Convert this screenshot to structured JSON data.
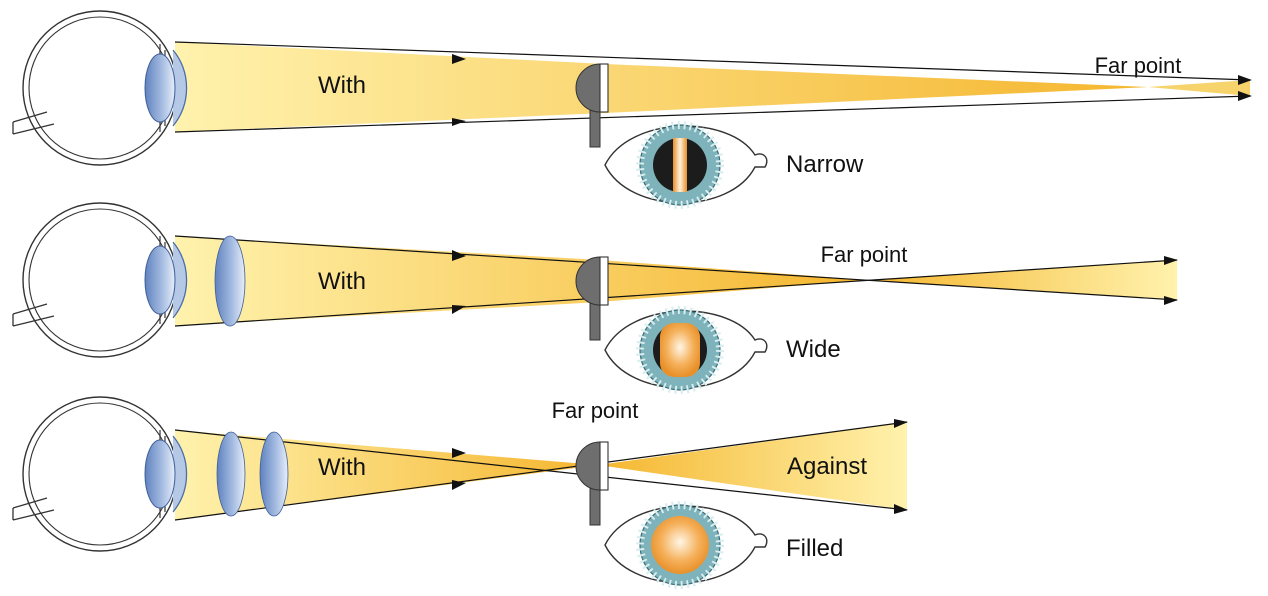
{
  "panels": [
    {
      "beam_label": "With",
      "far_point_label": "Far point",
      "reflex_label": "Narrow",
      "reflex_state": "narrow",
      "lens_count": 0
    },
    {
      "beam_label": "With",
      "far_point_label": "Far point",
      "reflex_label": "Wide",
      "reflex_state": "wide",
      "lens_count": 1
    },
    {
      "beam_label": "With",
      "far_point_label": "Far point",
      "reflex_label": "Filled",
      "reflex_state": "filled",
      "lens_count": 2,
      "reversed_label": "Against"
    }
  ],
  "colors": {
    "beam_light": "#fff2ad",
    "beam_dark": "#f5b62e",
    "lens": "#7f9fd0",
    "iris": "#7fb3bb",
    "pupil": "#1c1c1c",
    "reflex": "#f0a040",
    "peephole": "#6e6e6e",
    "arrow": "#111111"
  }
}
